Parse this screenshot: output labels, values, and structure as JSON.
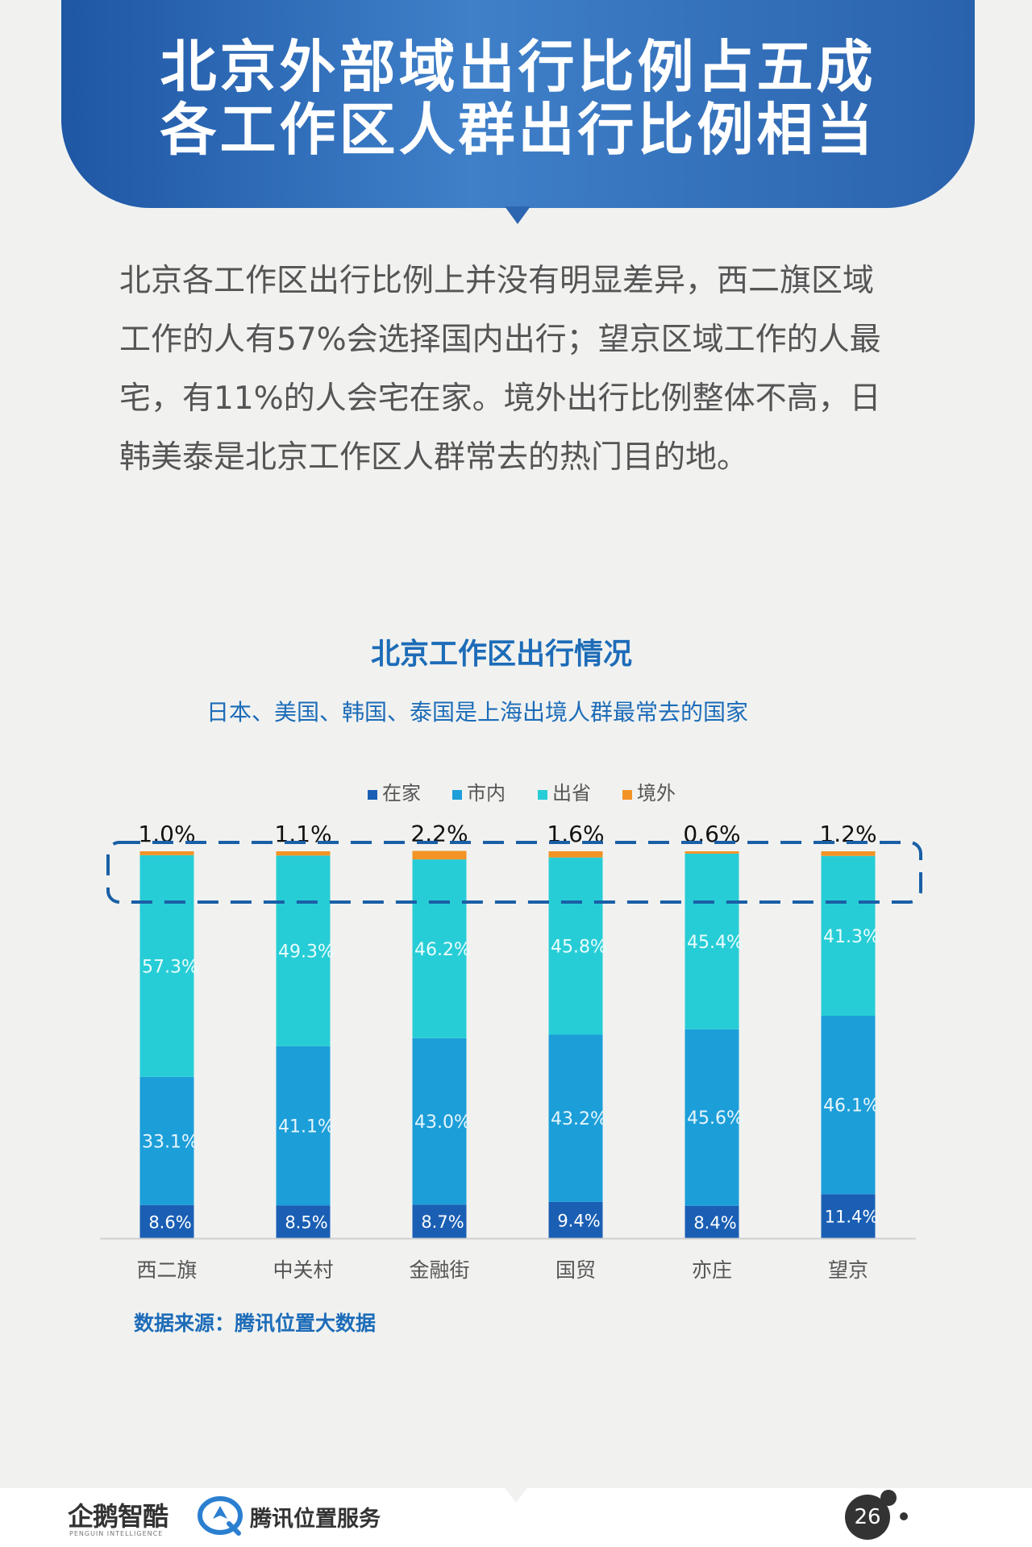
{
  "header": {
    "title_line1": "北京外部域出行比例占五成",
    "title_line2": "各工作区人群出行比例相当"
  },
  "intro_text": "北京各工作区出行比例上并没有明显差异，西二旗区域工作的人有57%会选择国内出行；望京区域工作的人最宅，有11%的人会宅在家。境外出行比例整体不高，日韩美泰是北京工作区人群常去的热门目的地。",
  "chart_data": {
    "type": "bar",
    "stacked": true,
    "title": "北京工作区出行情况",
    "subtitle": "日本、美国、韩国、泰国是上海出境人群最常去的国家",
    "categories": [
      "西二旗",
      "中关村",
      "金融街",
      "国贸",
      "亦庄",
      "望京"
    ],
    "series": [
      {
        "name": "在家",
        "color": "#1a5fb4",
        "values": [
          8.6,
          8.5,
          8.7,
          9.4,
          8.4,
          11.4
        ]
      },
      {
        "name": "市内",
        "color": "#1c9ed9",
        "values": [
          33.1,
          41.1,
          43.0,
          43.2,
          45.6,
          46.1
        ]
      },
      {
        "name": "出省",
        "color": "#27cdd6",
        "values": [
          57.3,
          49.3,
          46.2,
          45.8,
          45.4,
          41.3
        ]
      },
      {
        "name": "境外",
        "color": "#f39325",
        "values": [
          1.0,
          1.1,
          2.2,
          1.6,
          0.6,
          1.2
        ]
      }
    ],
    "value_labels": [
      [
        "8.6%",
        "8.5%",
        "8.7%",
        "9.4%",
        "8.4%",
        "11.4%"
      ],
      [
        "33.1%",
        "41.1%",
        "43.0%",
        "43.2%",
        "45.6%",
        "46.1%"
      ],
      [
        "57.3%",
        "49.3%",
        "46.2%",
        "45.8%",
        "45.4%",
        "41.3%"
      ],
      [
        "1.0%",
        "1.1%",
        "2.2%",
        "1.6%",
        "0.6%",
        "1.2%"
      ]
    ],
    "ylim": [
      0,
      100
    ],
    "legend_position": "top-center",
    "grid": false,
    "highlight_box": "dashed outline around 境外 values"
  },
  "source": "数据来源：腾讯位置大数据",
  "footer": {
    "logo1_text": "企鹅智酷",
    "logo1_sub": "PENGUIN INTELLIGENCE",
    "logo2_text": "腾讯位置服务",
    "page_number": "26"
  }
}
